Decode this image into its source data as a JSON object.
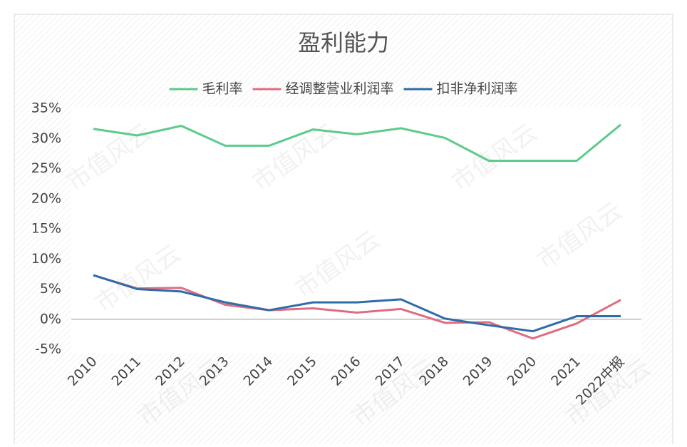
{
  "chart_data": {
    "type": "line",
    "title": "盈利能力",
    "watermark": "市值风云",
    "categories": [
      "2010",
      "2011",
      "2012",
      "2013",
      "2014",
      "2015",
      "2016",
      "2017",
      "2018",
      "2019",
      "2020",
      "2021",
      "2022中报"
    ],
    "series": [
      {
        "name": "毛利率",
        "color": "#5ccb8c",
        "values": [
          31.6,
          30.5,
          32.1,
          28.8,
          28.8,
          31.5,
          30.7,
          31.7,
          30.1,
          26.3,
          26.3,
          26.3,
          32.3
        ]
      },
      {
        "name": "经调整营业利润率",
        "color": "#e06c80",
        "values": [
          7.3,
          5.1,
          5.2,
          2.4,
          1.5,
          1.8,
          1.1,
          1.7,
          -0.6,
          -0.5,
          -3.2,
          -0.7,
          3.2
        ]
      },
      {
        "name": "扣非净利润率",
        "color": "#2e6da8",
        "values": [
          7.3,
          5.0,
          4.6,
          2.8,
          1.5,
          2.8,
          2.8,
          3.3,
          0.1,
          -1.0,
          -2.0,
          0.5,
          0.5
        ]
      }
    ],
    "ylim": [
      -5,
      35
    ],
    "yticks": [
      {
        "value": -5,
        "label": "-5%"
      },
      {
        "value": 0,
        "label": "0%"
      },
      {
        "value": 5,
        "label": "5%"
      },
      {
        "value": 10,
        "label": "10%"
      },
      {
        "value": 15,
        "label": "15%"
      },
      {
        "value": 20,
        "label": "20%"
      },
      {
        "value": 25,
        "label": "25%"
      },
      {
        "value": 30,
        "label": "30%"
      },
      {
        "value": 35,
        "label": "35%"
      }
    ],
    "legend": "top"
  }
}
